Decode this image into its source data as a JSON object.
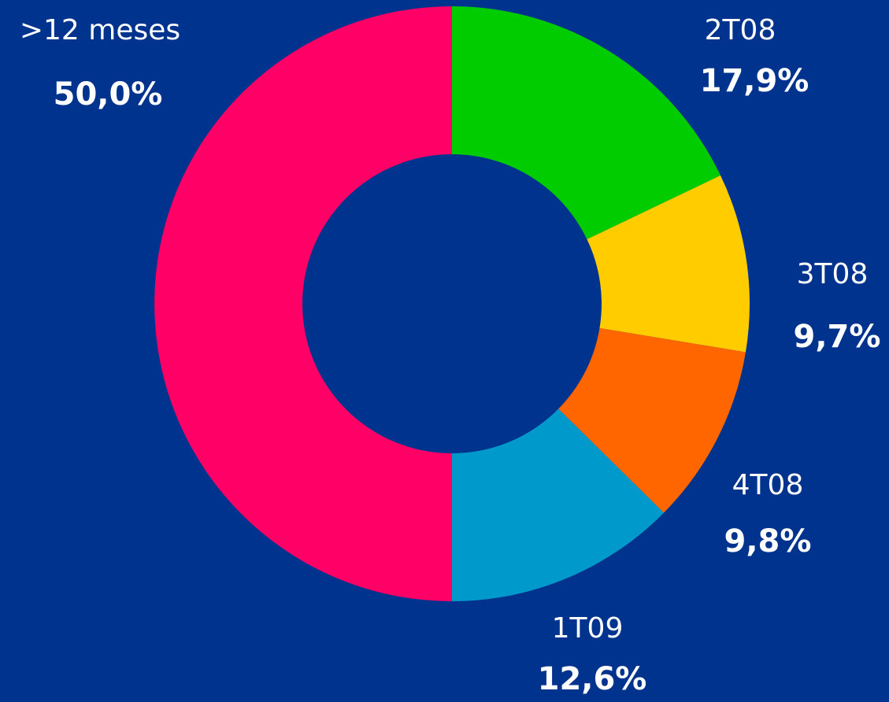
{
  "chart_data": {
    "type": "donut",
    "categories": [
      "2T08",
      "3T08",
      "4T08",
      "1T09",
      ">12 meses"
    ],
    "values": [
      17.9,
      9.7,
      9.8,
      12.6,
      50.0
    ],
    "value_labels": [
      "17,9%",
      "9,7%",
      "9,8%",
      "12,6%",
      "50,0%"
    ],
    "colors": [
      "#00cc00",
      "#ffcc00",
      "#ff6600",
      "#0099cc",
      "#ff0066"
    ]
  }
}
